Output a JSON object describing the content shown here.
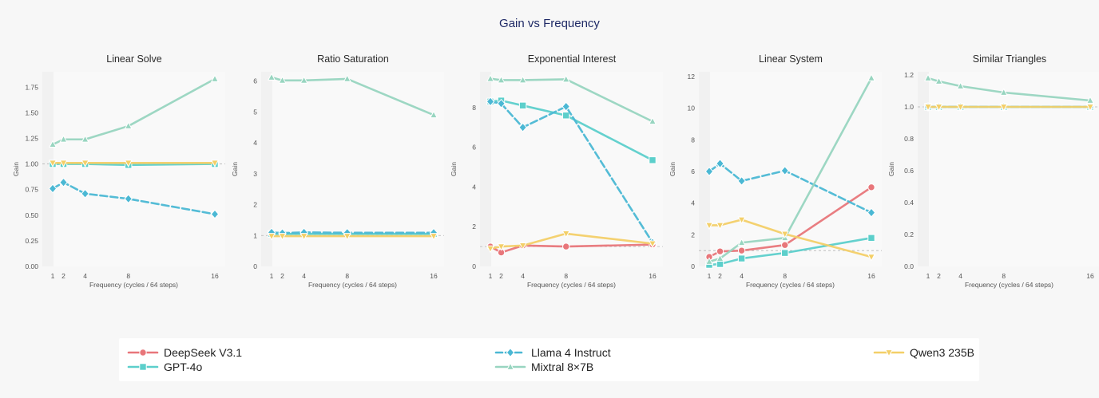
{
  "title": "Gain vs Frequency",
  "colors": {
    "DeepSeek V3.1": "#e8767a",
    "GPT-4o": "#5ccfcb",
    "Llama 4 Instruct": "#4bb8d4",
    "Mixtral 8×7B": "#98d5c0",
    "Qwen3 235B": "#f3cf68"
  },
  "markers": {
    "DeepSeek V3.1": "circle",
    "GPT-4o": "square",
    "Llama 4 Instruct": "diamond",
    "Mixtral 8×7B": "triangle-up",
    "Qwen3 235B": "triangle-down"
  },
  "legend": {
    "items": [
      "DeepSeek V3.1",
      "GPT-4o",
      "Llama 4 Instruct",
      "Mixtral 8×7B",
      "Qwen3 235B"
    ]
  },
  "chart_data": [
    {
      "type": "line",
      "title": "Linear Solve",
      "xlabel": "Frequency (cycles / 64 steps)",
      "ylabel": "Gain",
      "x": [
        1,
        2,
        4,
        8,
        16
      ],
      "xticks": [
        "1",
        "2",
        "4",
        "8",
        "16"
      ],
      "ylim": [
        0,
        1.9
      ],
      "yticks": [
        0,
        0.25,
        0.5,
        0.75,
        1.0,
        1.25,
        1.5,
        1.75
      ],
      "ytick_labels": [
        "0.00",
        "0.25",
        "0.50",
        "0.75",
        "1.00",
        "1.25",
        "1.50",
        "1.75"
      ],
      "reference_line": 1.0,
      "series": [
        {
          "name": "GPT-4o",
          "values": [
            1.0,
            1.0,
            1.0,
            0.99,
            1.0
          ]
        },
        {
          "name": "Llama 4 Instruct",
          "values": [
            0.76,
            0.82,
            0.71,
            0.66,
            0.51
          ]
        },
        {
          "name": "Mixtral 8×7B",
          "values": [
            1.19,
            1.24,
            1.24,
            1.37,
            1.83
          ]
        },
        {
          "name": "Qwen3 235B",
          "values": [
            1.01,
            1.01,
            1.01,
            1.01,
            1.01
          ]
        }
      ]
    },
    {
      "type": "line",
      "title": "Ratio Saturation",
      "xlabel": "Frequency (cycles / 64 steps)",
      "ylabel": "Gain",
      "x": [
        1,
        2,
        4,
        8,
        16
      ],
      "xticks": [
        "1",
        "2",
        "4",
        "8",
        "16"
      ],
      "ylim": [
        0,
        6.3
      ],
      "yticks": [
        0,
        1,
        2,
        3,
        4,
        5,
        6
      ],
      "ytick_labels": [
        "0",
        "1",
        "2",
        "3",
        "4",
        "5",
        "6"
      ],
      "reference_line": 1.0,
      "series": [
        {
          "name": "GPT-4o",
          "values": [
            1.05,
            1.05,
            1.05,
            1.05,
            1.05
          ]
        },
        {
          "name": "Llama 4 Instruct",
          "values": [
            1.1,
            1.08,
            1.1,
            1.09,
            1.09
          ]
        },
        {
          "name": "Mixtral 8×7B",
          "values": [
            6.12,
            6.02,
            6.02,
            6.07,
            4.9
          ]
        },
        {
          "name": "Qwen3 235B",
          "values": [
            0.98,
            0.98,
            0.98,
            0.98,
            0.98
          ]
        }
      ]
    },
    {
      "type": "line",
      "title": "Exponential Interest",
      "xlabel": "Frequency (cycles / 64 steps)",
      "ylabel": "Gain",
      "x": [
        1,
        2,
        4,
        8,
        16
      ],
      "xticks": [
        "1",
        "2",
        "4",
        "8",
        "16"
      ],
      "ylim": [
        0,
        9.8
      ],
      "yticks": [
        0,
        2,
        4,
        6,
        8
      ],
      "ytick_labels": [
        "0",
        "2",
        "4",
        "6",
        "8"
      ],
      "reference_line": 1.0,
      "series": [
        {
          "name": "DeepSeek V3.1",
          "values": [
            1.0,
            0.7,
            1.05,
            1.0,
            1.1
          ]
        },
        {
          "name": "GPT-4o",
          "values": [
            8.3,
            8.35,
            8.1,
            7.6,
            5.35
          ]
        },
        {
          "name": "Llama 4 Instruct",
          "values": [
            8.3,
            8.2,
            7.0,
            8.05,
            1.2
          ]
        },
        {
          "name": "Mixtral 8×7B",
          "values": [
            9.45,
            9.38,
            9.38,
            9.42,
            7.3
          ]
        },
        {
          "name": "Qwen3 235B",
          "values": [
            0.9,
            1.0,
            1.05,
            1.65,
            1.15
          ]
        }
      ]
    },
    {
      "type": "line",
      "title": "Linear System",
      "xlabel": "Frequency (cycles / 64 steps)",
      "ylabel": "Gain",
      "x": [
        1,
        2,
        4,
        8,
        16
      ],
      "xticks": [
        "1",
        "2",
        "4",
        "8",
        "16"
      ],
      "ylim": [
        0,
        12.3
      ],
      "yticks": [
        0,
        2,
        4,
        6,
        8,
        10,
        12
      ],
      "ytick_labels": [
        "0",
        "2",
        "4",
        "6",
        "8",
        "10",
        "12"
      ],
      "reference_line": 1.0,
      "series": [
        {
          "name": "DeepSeek V3.1",
          "values": [
            0.6,
            0.95,
            1.0,
            1.35,
            5.0
          ]
        },
        {
          "name": "GPT-4o",
          "values": [
            0.1,
            0.15,
            0.5,
            0.85,
            1.8
          ]
        },
        {
          "name": "Llama 4 Instruct",
          "values": [
            6.0,
            6.5,
            5.4,
            6.05,
            3.4
          ]
        },
        {
          "name": "Mixtral 8×7B",
          "values": [
            0.3,
            0.5,
            1.5,
            1.8,
            11.9
          ]
        },
        {
          "name": "Qwen3 235B",
          "values": [
            2.6,
            2.6,
            2.95,
            2.05,
            0.6
          ]
        }
      ]
    },
    {
      "type": "line",
      "title": "Similar Triangles",
      "xlabel": "Frequency (cycles / 64 steps)",
      "ylabel": "Gain",
      "x": [
        1,
        2,
        4,
        8,
        16
      ],
      "xticks": [
        "1",
        "2",
        "4",
        "8",
        "16"
      ],
      "ylim": [
        0,
        1.22
      ],
      "yticks": [
        0,
        0.2,
        0.4,
        0.6,
        0.8,
        1.0,
        1.2
      ],
      "ytick_labels": [
        "0.0",
        "0.2",
        "0.4",
        "0.6",
        "0.8",
        "1.0",
        "1.2"
      ],
      "reference_line": 1.0,
      "series": [
        {
          "name": "GPT-4o",
          "values": [
            1.0,
            1.0,
            1.0,
            1.0,
            1.0
          ]
        },
        {
          "name": "Llama 4 Instruct",
          "values": [
            1.0,
            1.0,
            1.0,
            1.0,
            1.0
          ]
        },
        {
          "name": "Mixtral 8×7B",
          "values": [
            1.18,
            1.16,
            1.13,
            1.09,
            1.04
          ]
        },
        {
          "name": "Qwen3 235B",
          "values": [
            1.0,
            1.0,
            1.0,
            1.0,
            1.0
          ]
        }
      ]
    }
  ]
}
